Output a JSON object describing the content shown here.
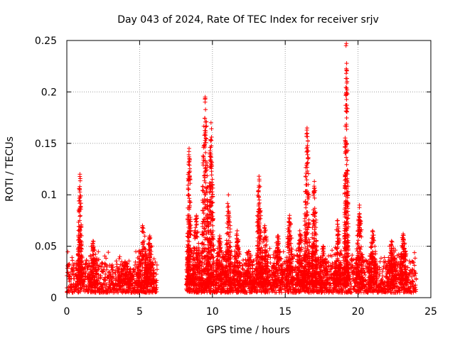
{
  "chart_data": {
    "type": "scatter",
    "title": "Day 043 of 2024, Rate Of TEC Index for receiver srjv",
    "xlabel": "GPS time / hours",
    "ylabel": "ROTI / TECUs",
    "xlim": [
      0,
      25
    ],
    "ylim": [
      0,
      0.25
    ],
    "xticks": [
      0,
      5,
      10,
      15,
      20,
      25
    ],
    "xtick_labels": [
      "0",
      "5",
      "10",
      "15",
      "20",
      "25"
    ],
    "yticks": [
      0,
      0.05,
      0.1,
      0.15,
      0.2,
      0.25
    ],
    "ytick_labels": [
      "0",
      "0.05",
      "0.1",
      "0.15",
      "0.2",
      "0.25"
    ],
    "grid": true,
    "marker": "+",
    "color": "#ff0000",
    "series": [
      {
        "name": "ROTI",
        "background_segments": [
          {
            "x_start": 0.0,
            "x_end": 6.2,
            "y_min": 0.005,
            "y_max": 0.028
          },
          {
            "x_start": 8.2,
            "x_end": 24.0,
            "y_min": 0.005,
            "y_max": 0.03
          }
        ],
        "peaks": [
          {
            "x": 0.9,
            "y": 0.12,
            "width": 0.15
          },
          {
            "x": 1.8,
            "y": 0.055,
            "width": 0.3
          },
          {
            "x": 4.0,
            "y": 0.035,
            "width": 0.5
          },
          {
            "x": 5.2,
            "y": 0.07,
            "width": 0.35
          },
          {
            "x": 5.7,
            "y": 0.06,
            "width": 0.3
          },
          {
            "x": 8.4,
            "y": 0.145,
            "width": 0.15
          },
          {
            "x": 8.9,
            "y": 0.08,
            "width": 0.3
          },
          {
            "x": 9.5,
            "y": 0.195,
            "width": 0.25
          },
          {
            "x": 9.9,
            "y": 0.17,
            "width": 0.2
          },
          {
            "x": 10.5,
            "y": 0.06,
            "width": 0.3
          },
          {
            "x": 11.1,
            "y": 0.1,
            "width": 0.2
          },
          {
            "x": 11.7,
            "y": 0.065,
            "width": 0.25
          },
          {
            "x": 12.5,
            "y": 0.045,
            "width": 0.4
          },
          {
            "x": 13.2,
            "y": 0.118,
            "width": 0.2
          },
          {
            "x": 13.6,
            "y": 0.07,
            "width": 0.25
          },
          {
            "x": 14.5,
            "y": 0.06,
            "width": 0.35
          },
          {
            "x": 15.3,
            "y": 0.08,
            "width": 0.25
          },
          {
            "x": 16.0,
            "y": 0.065,
            "width": 0.25
          },
          {
            "x": 16.5,
            "y": 0.165,
            "width": 0.2
          },
          {
            "x": 17.0,
            "y": 0.113,
            "width": 0.2
          },
          {
            "x": 17.6,
            "y": 0.05,
            "width": 0.3
          },
          {
            "x": 18.6,
            "y": 0.075,
            "width": 0.25
          },
          {
            "x": 19.2,
            "y": 0.247,
            "width": 0.15
          },
          {
            "x": 20.1,
            "y": 0.09,
            "width": 0.25
          },
          {
            "x": 21.0,
            "y": 0.065,
            "width": 0.3
          },
          {
            "x": 22.3,
            "y": 0.055,
            "width": 0.35
          },
          {
            "x": 23.1,
            "y": 0.062,
            "width": 0.25
          }
        ]
      }
    ]
  }
}
